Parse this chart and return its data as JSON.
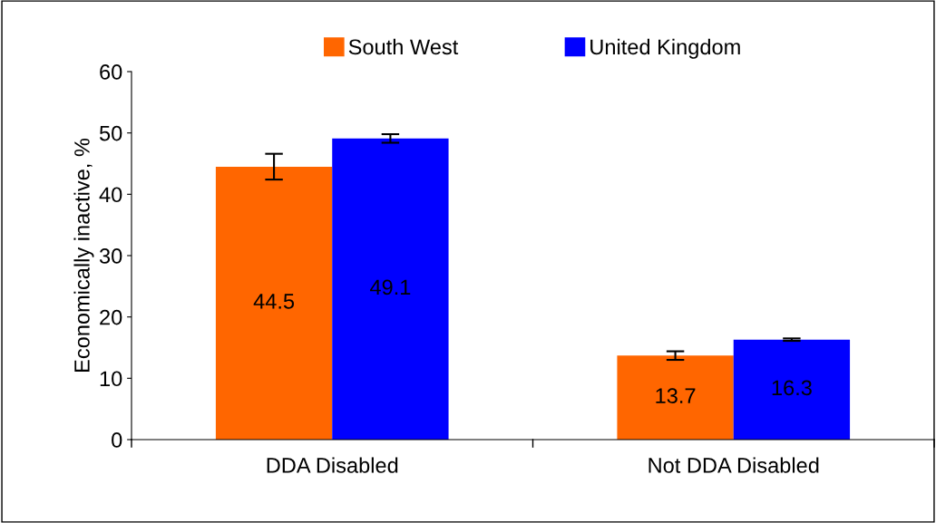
{
  "chart_data": {
    "type": "bar",
    "ylabel": "Economically inactive, %",
    "categories": [
      "DDA Disabled",
      "Not DDA Disabled"
    ],
    "series": [
      {
        "name": "South West",
        "color": "#ff6600",
        "values": [
          44.5,
          13.7
        ],
        "errors": [
          2.1,
          0.7
        ]
      },
      {
        "name": "United Kingdom",
        "color": "#0000ff",
        "values": [
          49.1,
          16.3
        ],
        "errors": [
          0.7,
          0.2
        ]
      }
    ],
    "ylim": [
      0,
      60
    ],
    "yticks": [
      0,
      10,
      20,
      30,
      40,
      50,
      60
    ],
    "data_labels": true,
    "grid": false,
    "legend": "top"
  }
}
